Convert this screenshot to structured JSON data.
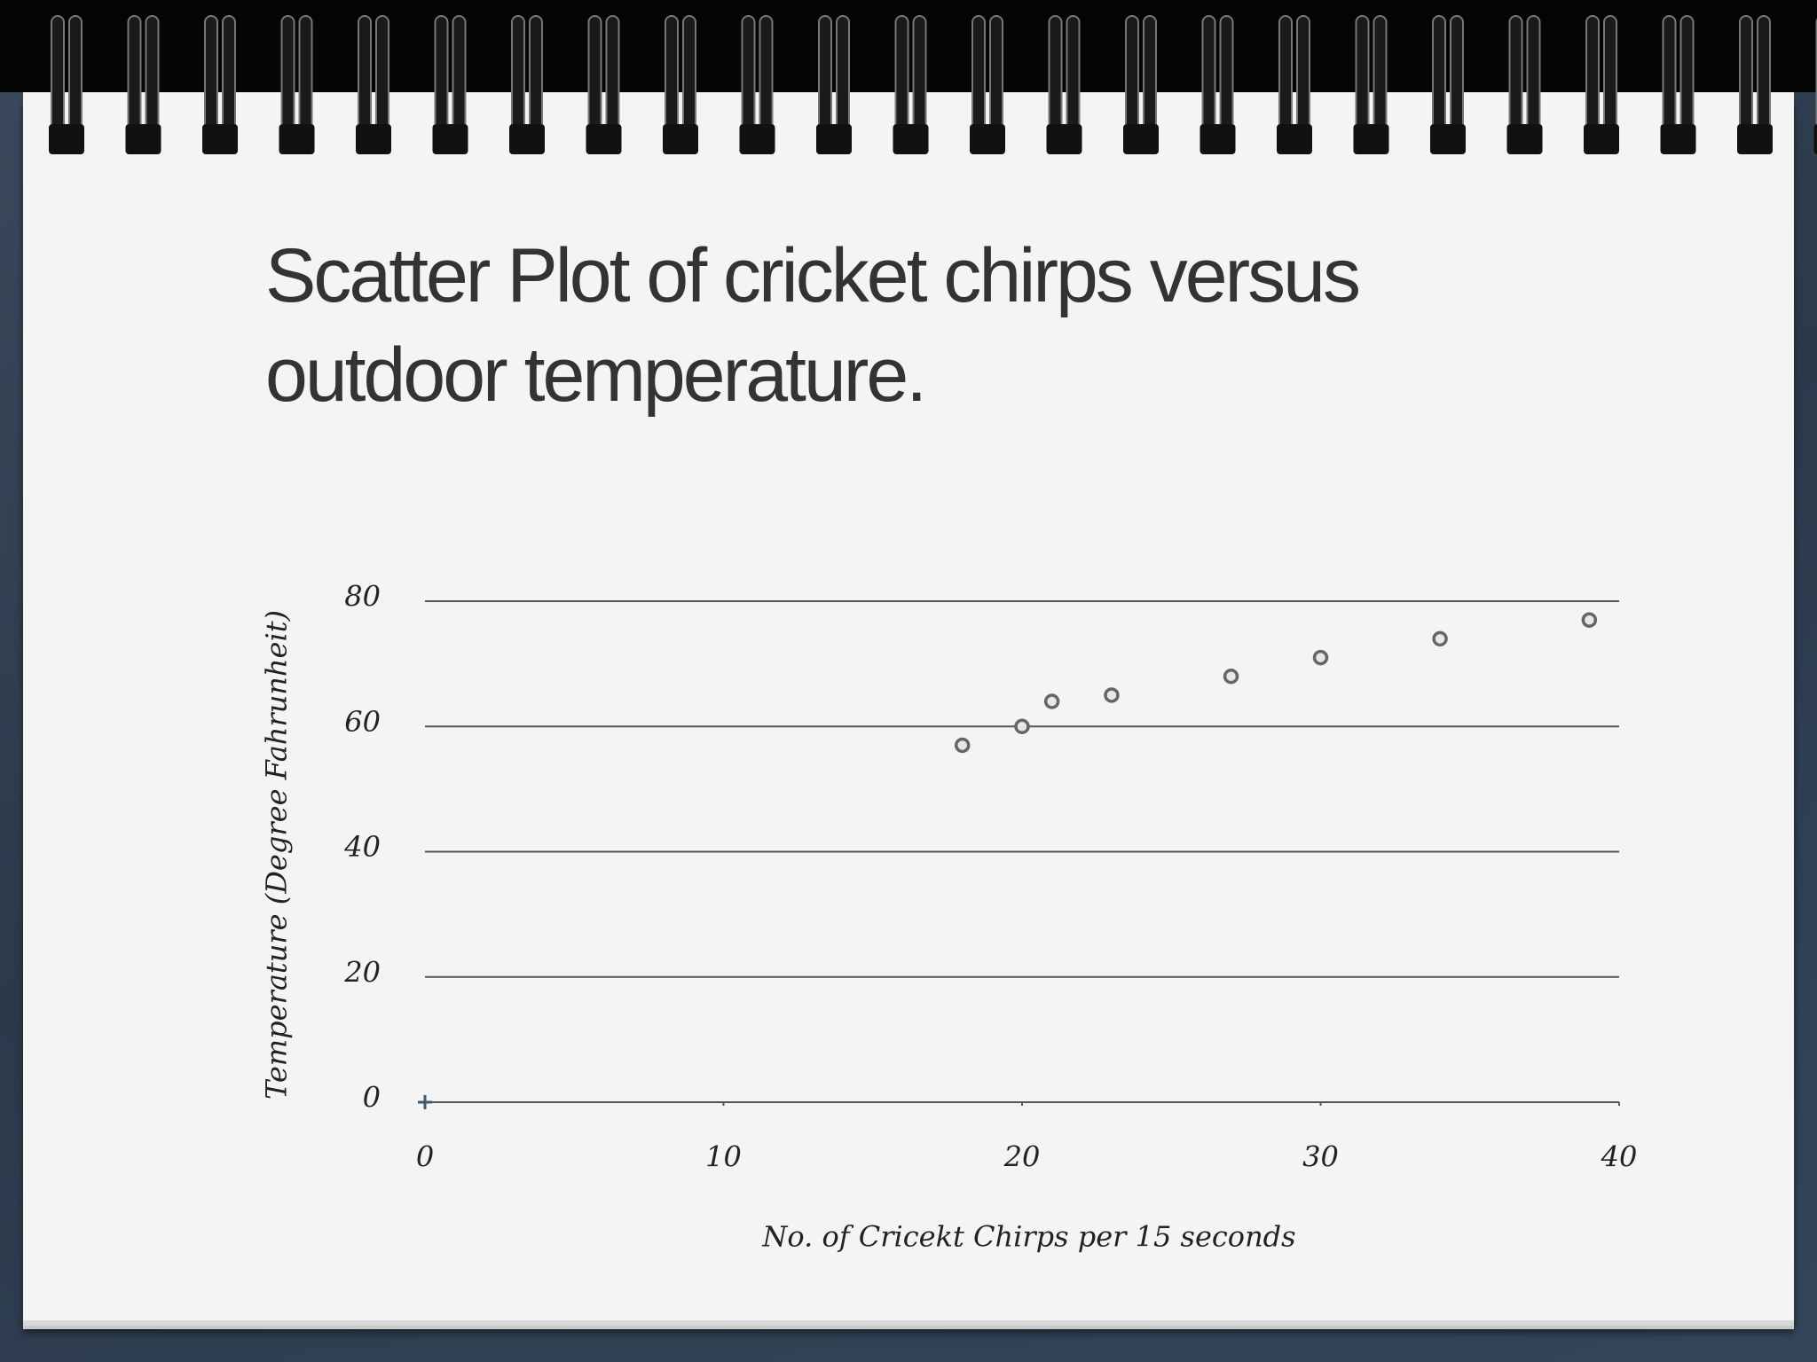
{
  "chart_data": {
    "type": "scatter",
    "title": "Scatter Plot of cricket chirps versus outdoor temperature.",
    "x_label": "No. of Cricekt Chirps per 15 seconds",
    "y_label": "Temperature (Degree Fahrunheit)",
    "x": [
      18,
      20,
      21,
      23,
      27,
      30,
      34,
      39
    ],
    "series": [
      {
        "name": "Temperature",
        "color": "#666666",
        "values": [
          57,
          60,
          64,
          65,
          68,
          71,
          74,
          77
        ]
      }
    ],
    "xlim": [
      0,
      40
    ],
    "xticks": [
      0,
      10,
      20,
      30,
      40
    ],
    "ylim": [
      0,
      80
    ],
    "yticks": [
      0,
      20,
      40,
      60,
      80
    ],
    "grid": true
  }
}
